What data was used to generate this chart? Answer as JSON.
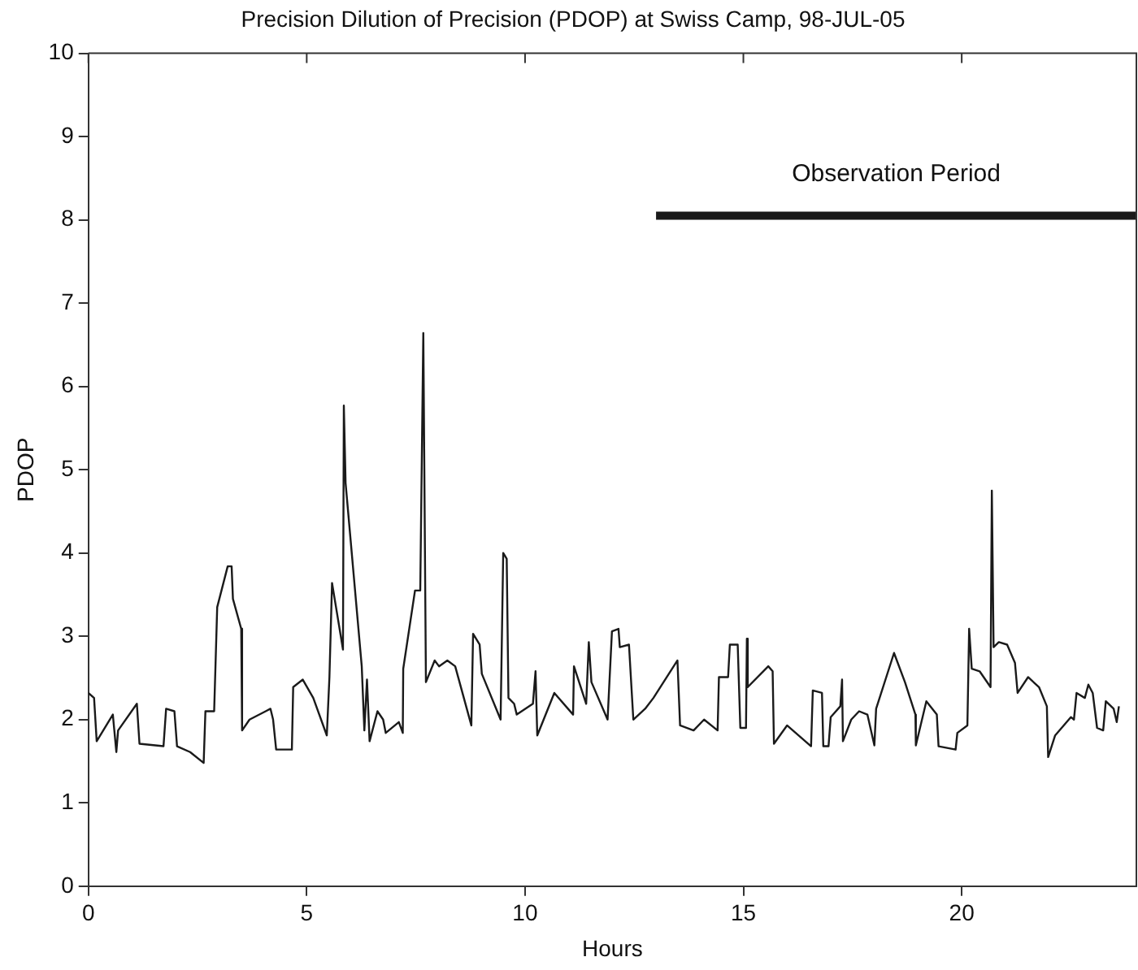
{
  "chart_data": {
    "type": "line",
    "title": "Precision Dilution of Precision (PDOP) at Swiss Camp, 98-JUL-05",
    "xlabel": "Hours",
    "ylabel": "PDOP",
    "xlim": [
      0,
      24
    ],
    "xticks": [
      0,
      5,
      10,
      15,
      20
    ],
    "ylim": [
      0,
      10
    ],
    "yticks": [
      0,
      1,
      2,
      3,
      4,
      5,
      6,
      7,
      8,
      9,
      10
    ],
    "grid": false,
    "legend": false,
    "marker": "none",
    "line_style": "solid",
    "series": [
      {
        "name": "Observation Period",
        "color": "#1a1a1a",
        "x": [
          13.0,
          24
        ],
        "values": [
          8.05,
          8.05
        ]
      },
      {
        "color": "#1a1a1a",
        "x": [
          0,
          0.13,
          0.19,
          0.56,
          0.64,
          0.68,
          1.11,
          1.17,
          1.72,
          1.78,
          1.97,
          2.03,
          2.33,
          2.64,
          2.68,
          2.88,
          2.95,
          3.19,
          3.28,
          3.31,
          3.5,
          3.52,
          3.69,
          4.06,
          4.17,
          4.23,
          4.3,
          4.66,
          4.69,
          4.91,
          5.15,
          5.46,
          5.52,
          5.58,
          5.79,
          5.83,
          5.85,
          5.89,
          6.26,
          6.32,
          6.38,
          6.44,
          6.62,
          6.75,
          6.81,
          7.11,
          7.2,
          7.21,
          7.48,
          7.6,
          7.67,
          7.73,
          7.93,
          8.03,
          8.22,
          8.4,
          8.77,
          8.81,
          8.96,
          9.01,
          9.44,
          9.5,
          9.58,
          9.62,
          9.75,
          9.81,
          10.18,
          10.24,
          10.28,
          10.67,
          11.1,
          11.12,
          11.4,
          11.46,
          11.52,
          11.89,
          11.99,
          12.14,
          12.17,
          12.38,
          12.48,
          12.75,
          12.94,
          13.49,
          13.55,
          13.86,
          14.1,
          14.41,
          14.44,
          14.65,
          14.69,
          14.87,
          14.93,
          15.06,
          15.08,
          15.1,
          15.57,
          15.67,
          15.7,
          16.0,
          16.55,
          16.59,
          16.8,
          16.83,
          16.95,
          17.0,
          17.22,
          17.26,
          17.28,
          17.47,
          17.65,
          17.84,
          18.0,
          18.04,
          18.45,
          18.7,
          18.94,
          18.95,
          19.19,
          19.43,
          19.47,
          19.86,
          19.9,
          20.13,
          20.17,
          20.23,
          20.41,
          20.66,
          20.69,
          20.73,
          20.85,
          21.04,
          21.22,
          21.28,
          21.52,
          21.77,
          21.95,
          21.98,
          22.14,
          22.5,
          22.57,
          22.63,
          22.82,
          22.9,
          23.0,
          23.1,
          23.24,
          23.3,
          23.48,
          23.55,
          23.6
        ],
        "values": [
          2.32,
          2.26,
          1.74,
          2.06,
          1.61,
          1.87,
          2.19,
          1.71,
          1.68,
          2.13,
          2.1,
          1.68,
          1.61,
          1.48,
          2.1,
          2.1,
          3.35,
          3.84,
          3.84,
          3.45,
          3.09,
          1.87,
          2.0,
          2.1,
          2.13,
          2.0,
          1.64,
          1.64,
          2.39,
          2.48,
          2.26,
          1.81,
          2.51,
          3.64,
          2.97,
          2.84,
          5.77,
          4.84,
          2.64,
          1.87,
          2.48,
          1.74,
          2.1,
          2.0,
          1.84,
          1.97,
          1.84,
          2.61,
          3.55,
          3.55,
          6.64,
          2.45,
          2.71,
          2.64,
          2.71,
          2.64,
          1.93,
          3.03,
          2.9,
          2.55,
          2.0,
          4.0,
          3.93,
          2.26,
          2.19,
          2.06,
          2.19,
          2.58,
          1.81,
          2.32,
          2.06,
          2.64,
          2.19,
          2.93,
          2.45,
          2.0,
          3.06,
          3.09,
          2.87,
          2.9,
          2.0,
          2.13,
          2.26,
          2.71,
          1.93,
          1.87,
          2.0,
          1.87,
          2.51,
          2.51,
          2.9,
          2.9,
          1.9,
          1.9,
          2.97,
          2.39,
          2.64,
          2.58,
          1.71,
          1.93,
          1.68,
          2.35,
          2.32,
          1.68,
          1.68,
          2.03,
          2.16,
          2.48,
          1.74,
          2.0,
          2.1,
          2.06,
          1.69,
          2.13,
          2.8,
          2.45,
          2.06,
          1.69,
          2.22,
          2.06,
          1.68,
          1.64,
          1.84,
          1.93,
          3.09,
          2.61,
          2.58,
          2.39,
          4.75,
          2.87,
          2.93,
          2.9,
          2.68,
          2.32,
          2.51,
          2.39,
          2.16,
          1.55,
          1.81,
          2.03,
          2.0,
          2.32,
          2.26,
          2.42,
          2.32,
          1.9,
          1.87,
          2.22,
          2.13,
          1.97,
          2.16
        ]
      }
    ]
  }
}
